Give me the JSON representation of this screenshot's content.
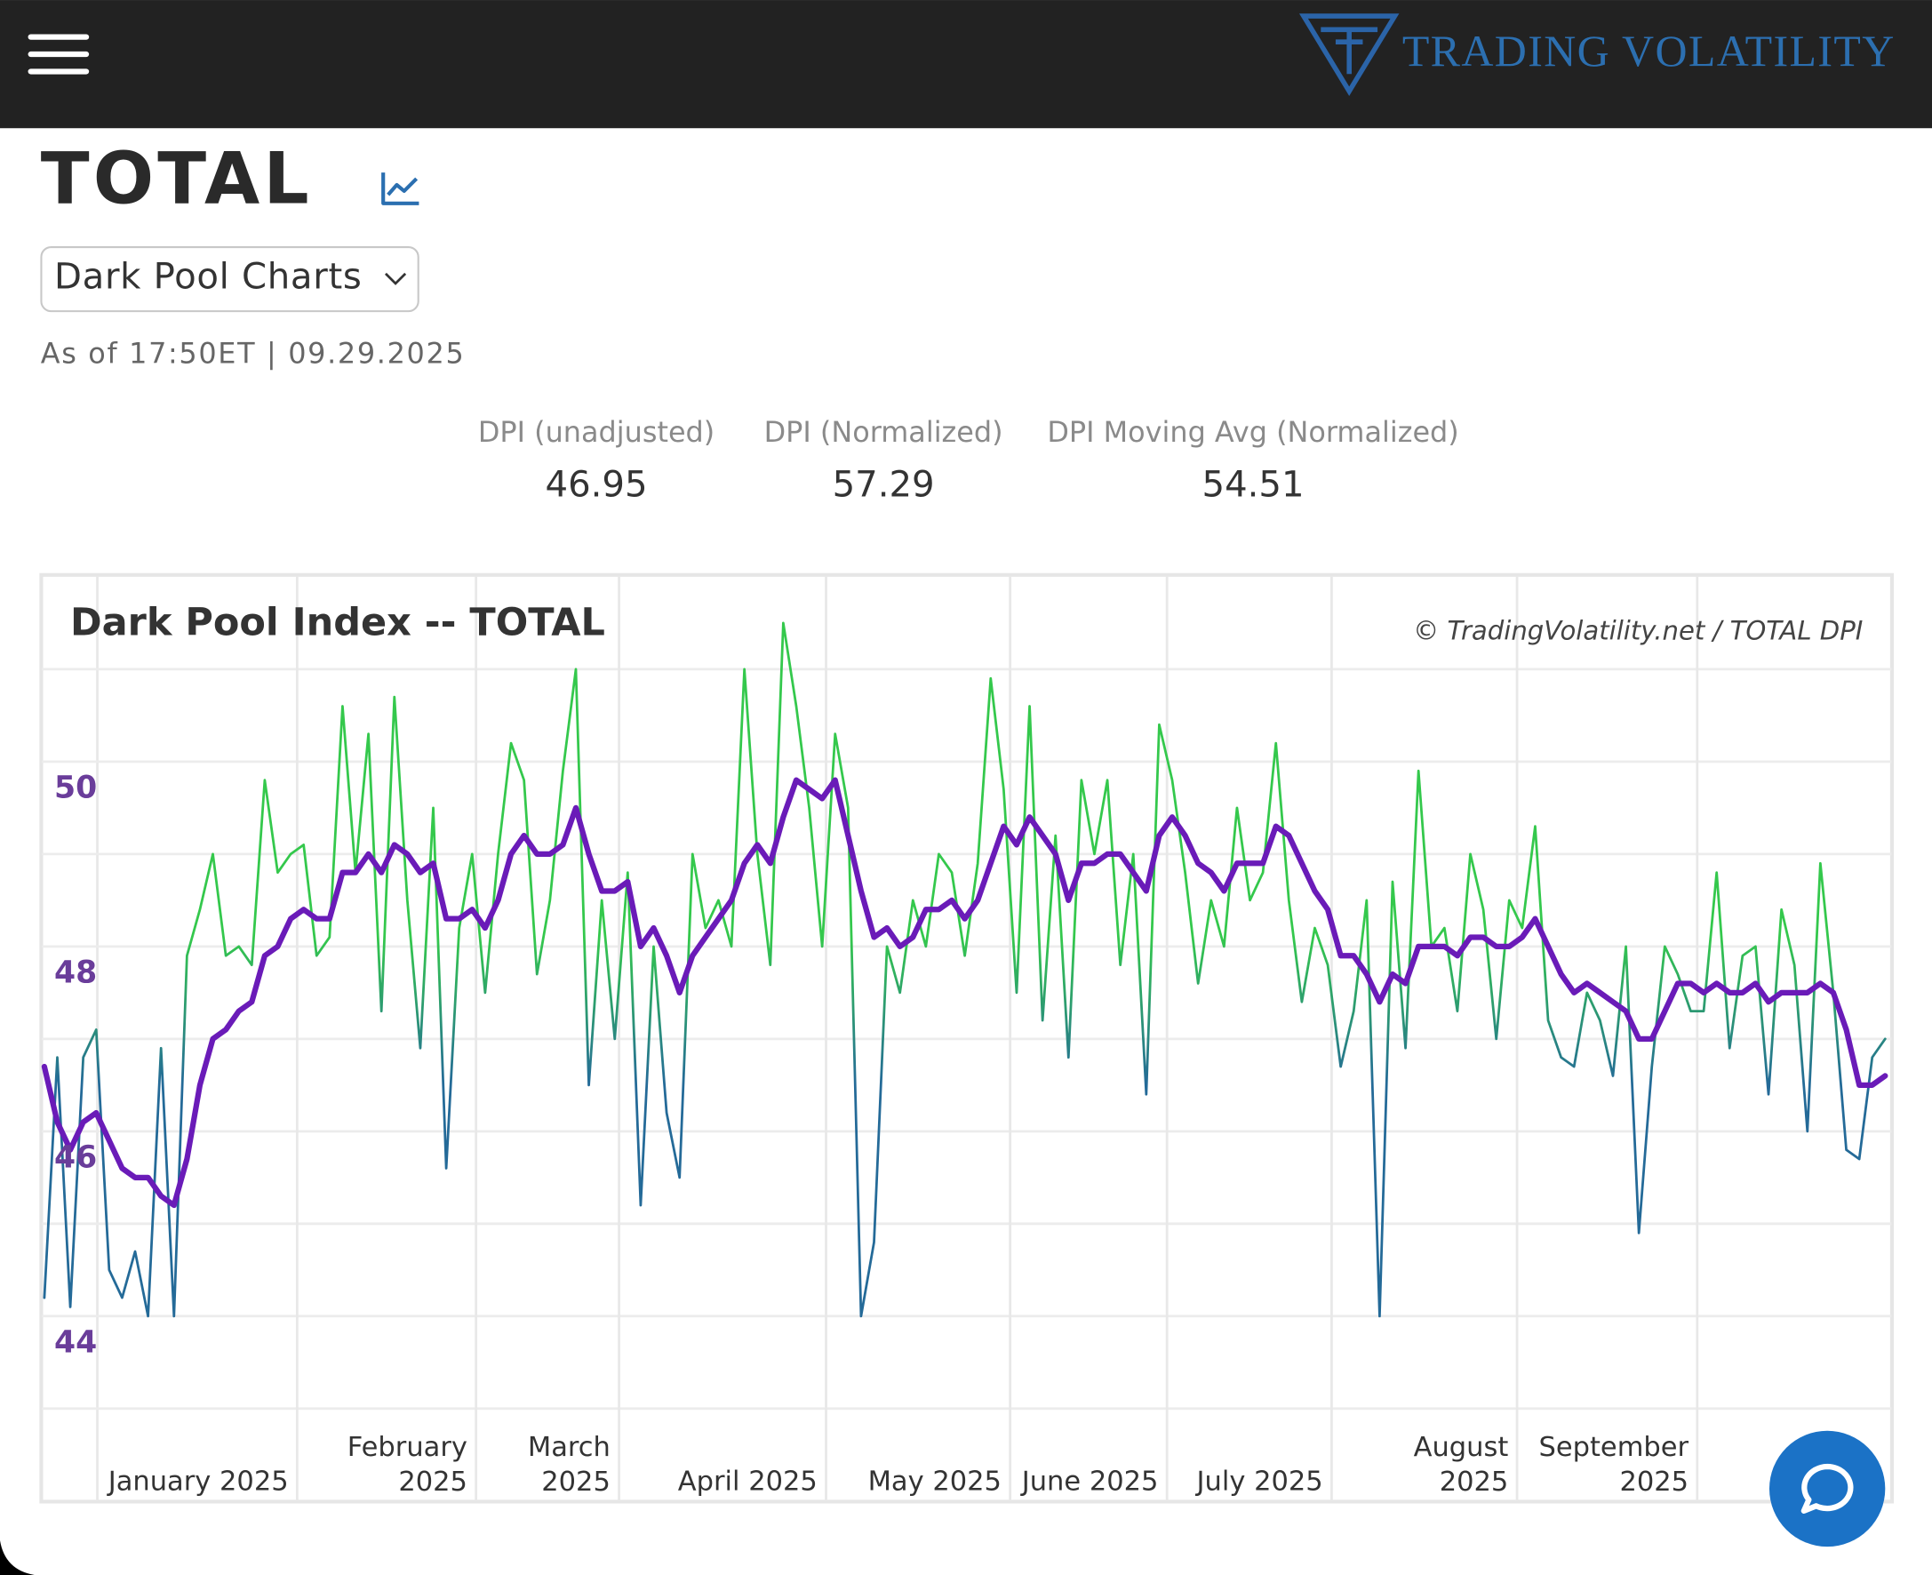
{
  "header": {
    "logo": "TRADING VOLATILITY"
  },
  "page": {
    "title": "TOTAL",
    "select": "Dark Pool Charts",
    "as_of": "As of 17:50ET | 09.29.2025"
  },
  "stats": [
    {
      "label": "DPI (unadjusted)",
      "value": 46.95
    },
    {
      "label": "DPI (Normalized)",
      "value": 57.29
    },
    {
      "label": "DPI Moving Avg (Normalized)",
      "value": 54.51
    }
  ],
  "chart_data": {
    "type": "line",
    "title": "Dark Pool Index -- TOTAL",
    "credit": "© TradingVolatility.net / TOTAL DPI",
    "xlim": [
      0,
      142
    ],
    "xticks": [
      {
        "value": 19.5,
        "label": "January 2025"
      },
      {
        "value": 33.3,
        "label": "February 2025"
      },
      {
        "value": 44.33,
        "label": "March 2025"
      },
      {
        "value": 60.3,
        "label": "April 2025"
      },
      {
        "value": 74.5,
        "label": "May 2025"
      },
      {
        "value": 86.6,
        "label": "June 2025"
      },
      {
        "value": 99.3,
        "label": "July 2025"
      },
      {
        "value": 113.6,
        "label": "August 2025"
      },
      {
        "value": 127.5,
        "label": "September 2025"
      }
    ],
    "ylim": [
      42,
      52
    ],
    "yticks": [
      44,
      46,
      48,
      50
    ],
    "minor_yticks": [
      43,
      45,
      47,
      49,
      51
    ],
    "ytick_color": "#6a3d9a",
    "grid": true,
    "series": [
      {
        "name": "DPI",
        "color": "#34c84c",
        "low_color": "#246a98",
        "values": [
          44.2,
          46.8,
          44.1,
          46.8,
          47.1,
          44.5,
          44.2,
          44.7,
          44.0,
          46.9,
          44.0,
          47.9,
          48.4,
          49.0,
          47.9,
          48.0,
          47.8,
          49.8,
          48.8,
          49.0,
          49.1,
          47.9,
          48.1,
          50.6,
          48.8,
          50.3,
          47.3,
          50.7,
          48.5,
          46.9,
          49.5,
          45.6,
          48.2,
          49.0,
          47.5,
          49.0,
          50.2,
          49.8,
          47.7,
          48.5,
          49.9,
          51.0,
          46.5,
          48.5,
          47.0,
          48.8,
          45.2,
          48.0,
          46.2,
          45.5,
          49.0,
          48.2,
          48.5,
          48.0,
          51.0,
          49.0,
          47.8,
          51.5,
          50.6,
          49.5,
          48.0,
          50.3,
          49.5,
          44.0,
          44.8,
          48.0,
          47.5,
          48.5,
          48.0,
          49.0,
          48.8,
          47.9,
          48.9,
          50.9,
          49.7,
          47.5,
          50.6,
          47.2,
          49.2,
          46.8,
          49.8,
          49.0,
          49.8,
          47.8,
          49.0,
          46.4,
          50.4,
          49.8,
          48.8,
          47.6,
          48.5,
          48.0,
          49.5,
          48.5,
          48.8,
          50.2,
          48.5,
          47.4,
          48.2,
          47.8,
          46.7,
          47.3,
          48.5,
          44.0,
          48.7,
          46.9,
          49.9,
          48.0,
          48.2,
          47.3,
          49.0,
          48.4,
          47.0,
          48.5,
          48.2,
          49.3,
          47.2,
          46.8,
          46.7,
          47.5,
          47.2,
          46.6,
          48.0,
          44.9,
          46.7,
          48.0,
          47.7,
          47.3,
          47.3,
          48.8,
          46.9,
          47.9,
          48.0,
          46.4,
          48.4,
          47.8,
          46.0,
          48.9,
          47.5,
          45.8,
          45.7,
          46.8,
          47.0
        ]
      },
      {
        "name": "DPI Moving Avg",
        "color": "#6a1bb8",
        "values": [
          46.7,
          46.1,
          45.8,
          46.1,
          46.2,
          45.9,
          45.6,
          45.5,
          45.5,
          45.3,
          45.2,
          45.7,
          46.5,
          47.0,
          47.1,
          47.3,
          47.4,
          47.9,
          48.0,
          48.3,
          48.4,
          48.3,
          48.3,
          48.8,
          48.8,
          49.0,
          48.8,
          49.1,
          49.0,
          48.8,
          48.9,
          48.3,
          48.3,
          48.4,
          48.2,
          48.5,
          49.0,
          49.2,
          49.0,
          49.0,
          49.1,
          49.5,
          49.0,
          48.6,
          48.6,
          48.7,
          48.0,
          48.2,
          47.9,
          47.5,
          47.9,
          48.1,
          48.3,
          48.5,
          48.9,
          49.1,
          48.9,
          49.4,
          49.8,
          49.7,
          49.6,
          49.8,
          49.2,
          48.6,
          48.1,
          48.2,
          48.0,
          48.1,
          48.4,
          48.4,
          48.5,
          48.3,
          48.5,
          48.9,
          49.3,
          49.1,
          49.4,
          49.2,
          49.0,
          48.5,
          48.9,
          48.9,
          49.0,
          49.0,
          48.8,
          48.6,
          49.2,
          49.4,
          49.2,
          48.9,
          48.8,
          48.6,
          48.9,
          48.9,
          48.9,
          49.3,
          49.2,
          48.9,
          48.6,
          48.4,
          47.9,
          47.9,
          47.7,
          47.4,
          47.7,
          47.6,
          48.0,
          48.0,
          48.0,
          47.9,
          48.1,
          48.1,
          48.0,
          48.0,
          48.1,
          48.3,
          48.0,
          47.7,
          47.5,
          47.6,
          47.5,
          47.4,
          47.3,
          47.0,
          47.0,
          47.3,
          47.6,
          47.6,
          47.5,
          47.6,
          47.5,
          47.5,
          47.6,
          47.4,
          47.5,
          47.5,
          47.5,
          47.6,
          47.5,
          47.1,
          46.5,
          46.5,
          46.6
        ]
      }
    ]
  }
}
